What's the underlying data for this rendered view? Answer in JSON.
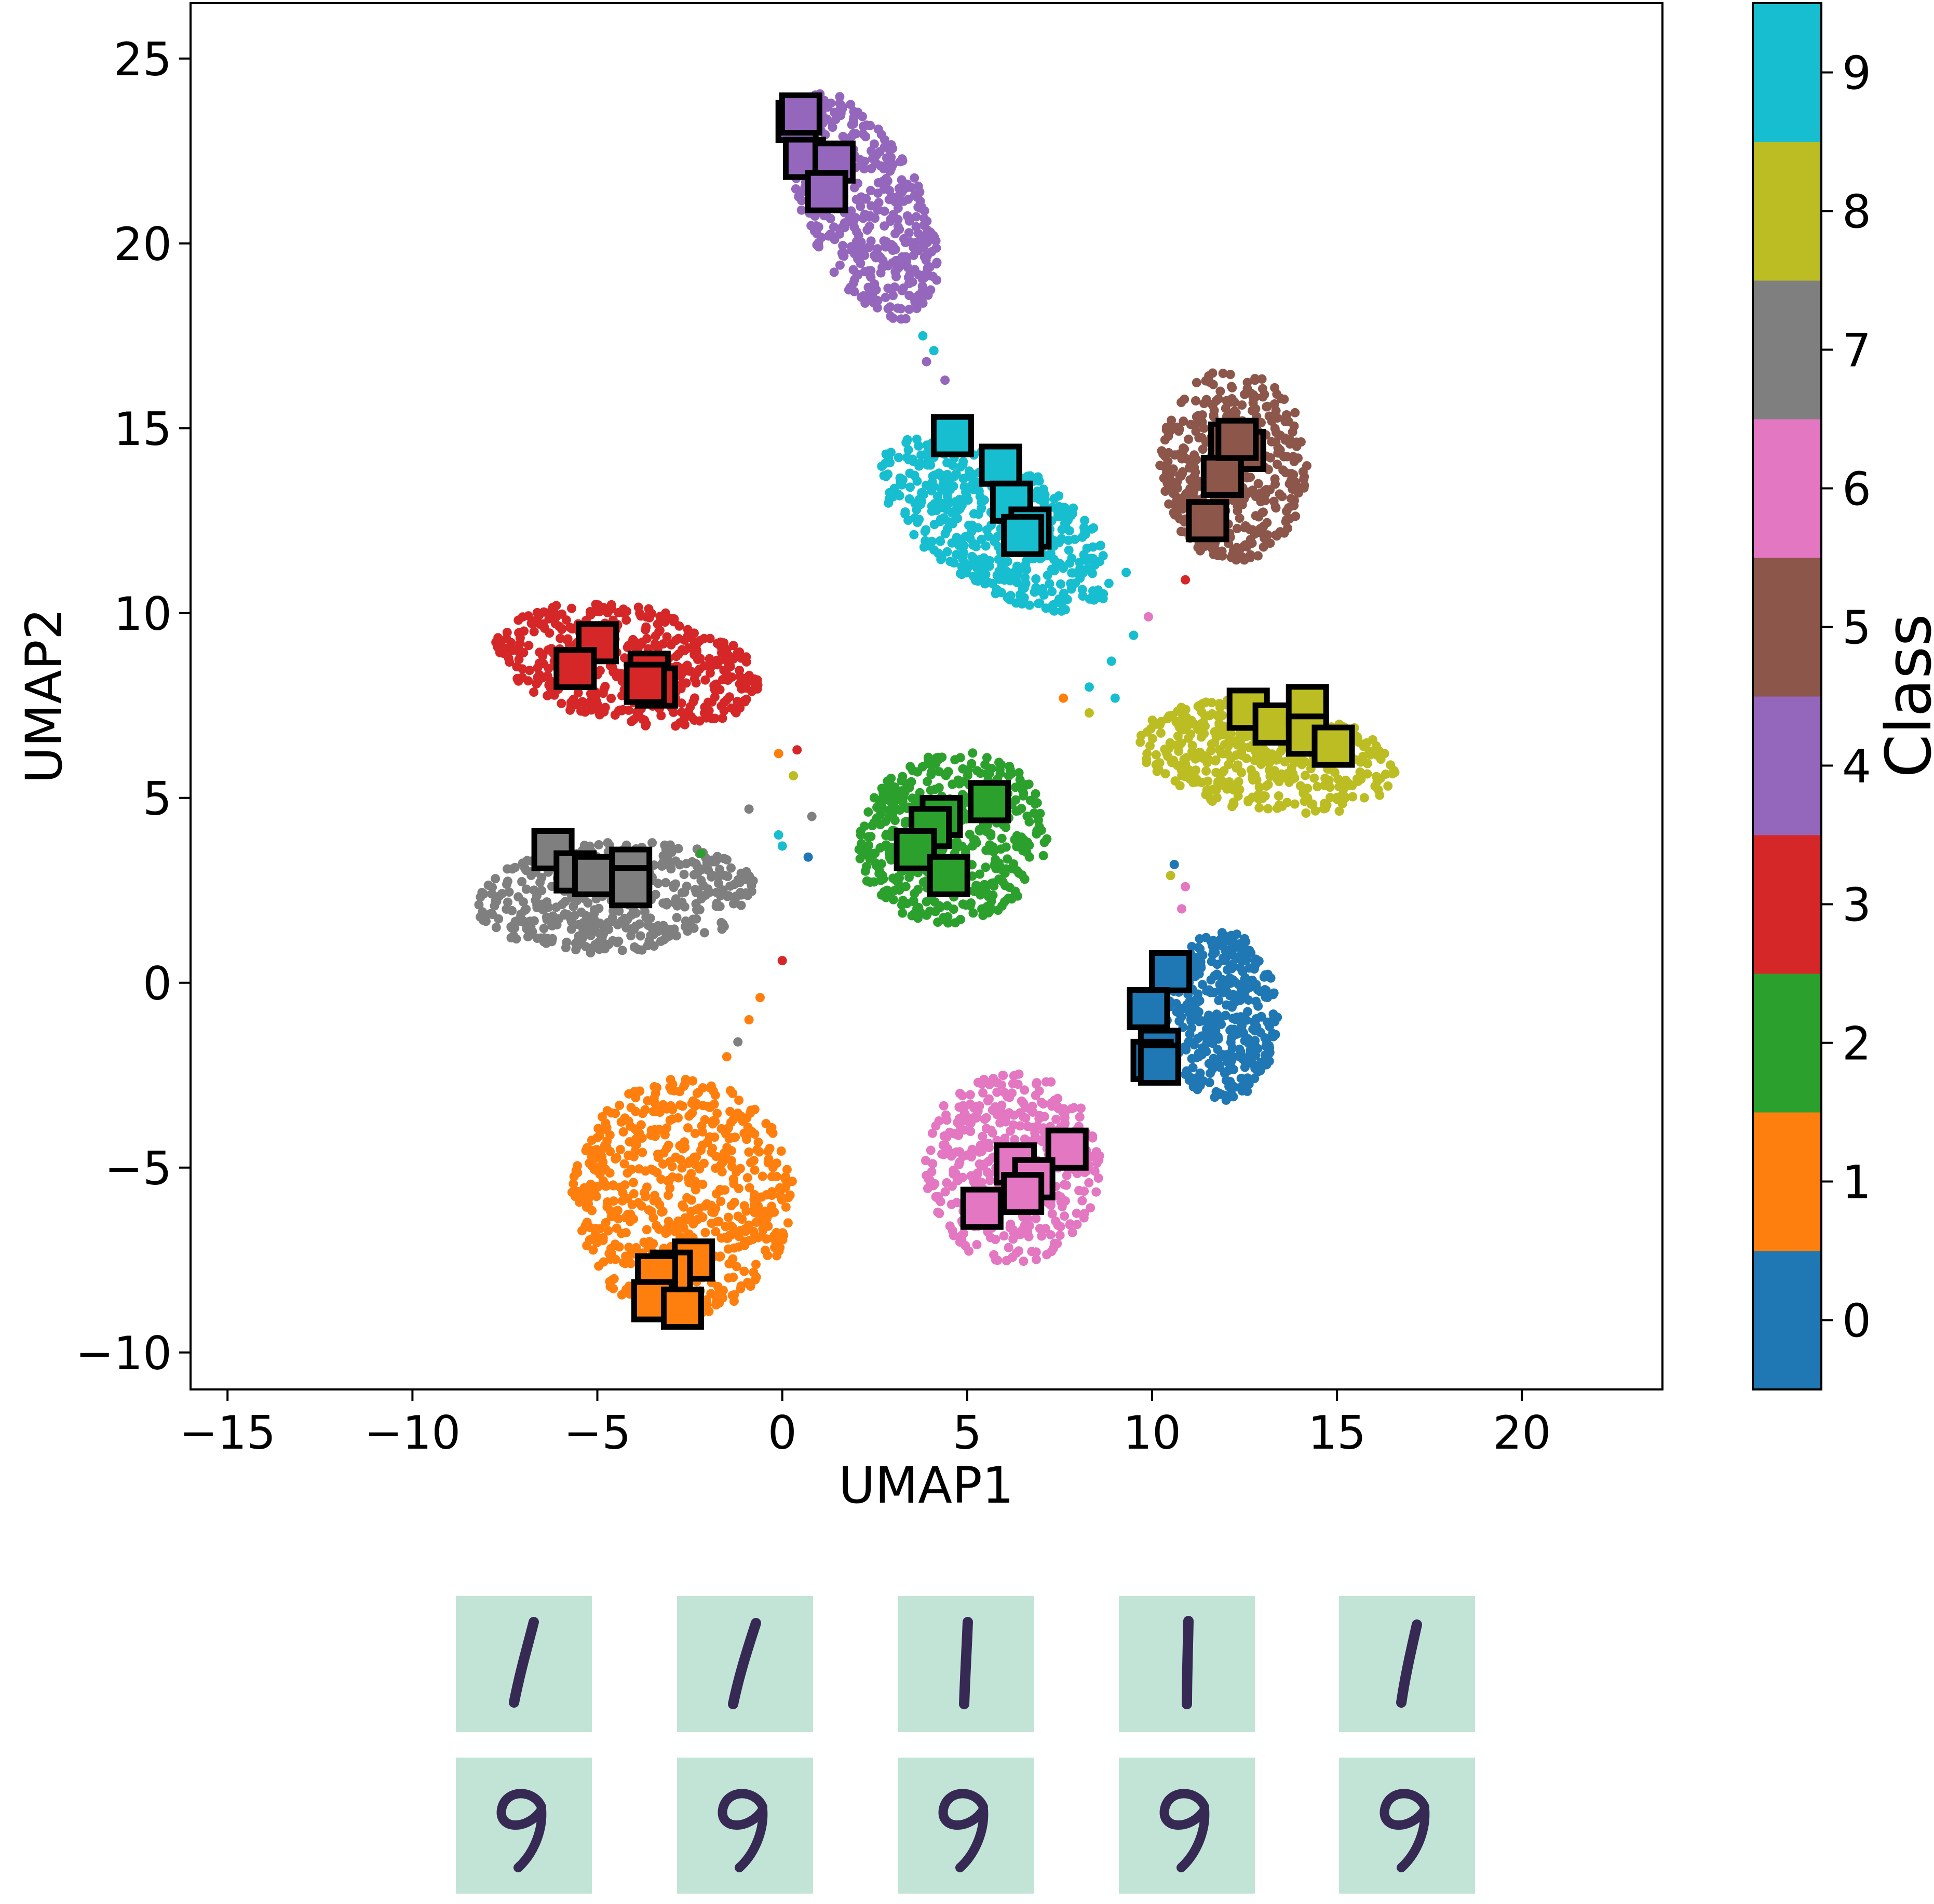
{
  "chart_data": {
    "type": "scatter",
    "xlabel": "UMAP1",
    "ylabel": "UMAP2",
    "xlim": [
      -16.0,
      23.8
    ],
    "ylim": [
      -11.0,
      26.5
    ],
    "xticks": [
      -15,
      -10,
      -5,
      0,
      5,
      10,
      15,
      20
    ],
    "xtick_labels": [
      "−15",
      "−10",
      "−5",
      "0",
      "5",
      "10",
      "15",
      "20"
    ],
    "yticks": [
      -10,
      -5,
      0,
      5,
      10,
      15,
      20,
      25
    ],
    "ytick_labels": [
      "−10",
      "−5",
      "0",
      "5",
      "10",
      "15",
      "20",
      "25"
    ],
    "grid": false,
    "colorbar": {
      "label": "Class",
      "ticks": [
        "0",
        "1",
        "2",
        "3",
        "4",
        "5",
        "6",
        "7",
        "8",
        "9"
      ],
      "colors": [
        "#1f77b4",
        "#ff7f0e",
        "#2ca02c",
        "#d62728",
        "#9467bd",
        "#8c564b",
        "#e377c2",
        "#7f7f7f",
        "#bcbd22",
        "#17becf"
      ]
    },
    "clusters": [
      {
        "class": 0,
        "center": [
          11.9,
          -0.9
        ],
        "spread": [
          1.5,
          2.3
        ],
        "rotation": 0,
        "count": 380
      },
      {
        "class": 1,
        "center": [
          -2.7,
          -5.8
        ],
        "spread": [
          3.0,
          3.2
        ],
        "rotation": 0,
        "count": 620
      },
      {
        "class": 2,
        "center": [
          4.6,
          3.9
        ],
        "spread": [
          2.6,
          2.3
        ],
        "rotation": 20,
        "count": 480
      },
      {
        "class": 3,
        "center": [
          -4.2,
          8.6
        ],
        "spread": [
          3.6,
          1.6
        ],
        "rotation": -10,
        "count": 460
      },
      {
        "class": 4,
        "center": [
          2.2,
          21.0
        ],
        "spread": [
          1.6,
          3.3
        ],
        "rotation": 25,
        "count": 440
      },
      {
        "class": 5,
        "center": [
          12.2,
          14.0
        ],
        "spread": [
          2.0,
          2.6
        ],
        "rotation": 0,
        "count": 420
      },
      {
        "class": 6,
        "center": [
          6.2,
          -5.0
        ],
        "spread": [
          2.4,
          2.6
        ],
        "rotation": 0,
        "count": 430
      },
      {
        "class": 7,
        "center": [
          -4.5,
          2.3
        ],
        "spread": [
          3.8,
          1.5
        ],
        "rotation": 3,
        "count": 460
      },
      {
        "class": 8,
        "center": [
          13.1,
          6.1
        ],
        "spread": [
          3.5,
          1.5
        ],
        "rotation": -8,
        "count": 460
      },
      {
        "class": 9,
        "center": [
          5.8,
          12.4
        ],
        "spread": [
          3.6,
          1.7
        ],
        "rotation": -32,
        "count": 500
      }
    ],
    "stragglers": [
      {
        "class": 9,
        "x": 3.8,
        "y": 17.5
      },
      {
        "class": 9,
        "x": 4.1,
        "y": 17.1
      },
      {
        "class": 4,
        "x": 3.9,
        "y": 16.8
      },
      {
        "class": 4,
        "x": 4.4,
        "y": 16.3
      },
      {
        "class": 9,
        "x": 9.3,
        "y": 11.1
      },
      {
        "class": 9,
        "x": 8.4,
        "y": 10.6
      },
      {
        "class": 6,
        "x": 9.9,
        "y": 9.9
      },
      {
        "class": 9,
        "x": 9.5,
        "y": 9.4
      },
      {
        "class": 9,
        "x": 8.9,
        "y": 8.7
      },
      {
        "class": 9,
        "x": 8.3,
        "y": 8.0
      },
      {
        "class": 9,
        "x": 9.0,
        "y": 7.7
      },
      {
        "class": 1,
        "x": 7.6,
        "y": 7.7
      },
      {
        "class": 8,
        "x": 8.3,
        "y": 7.3
      },
      {
        "class": 3,
        "x": 10.9,
        "y": 10.9
      },
      {
        "class": 3,
        "x": 0.4,
        "y": 6.3
      },
      {
        "class": 1,
        "x": -0.1,
        "y": 6.2
      },
      {
        "class": 8,
        "x": 0.3,
        "y": 5.6
      },
      {
        "class": 2,
        "x": 6.5,
        "y": 5.2
      },
      {
        "class": 7,
        "x": -0.9,
        "y": 4.7
      },
      {
        "class": 7,
        "x": 0.8,
        "y": 4.5
      },
      {
        "class": 9,
        "x": -0.1,
        "y": 4.0
      },
      {
        "class": 9,
        "x": 0.0,
        "y": 3.7
      },
      {
        "class": 0,
        "x": 0.7,
        "y": 3.4
      },
      {
        "class": 2,
        "x": -2.2,
        "y": 3.5
      },
      {
        "class": 0,
        "x": 10.6,
        "y": 3.2
      },
      {
        "class": 8,
        "x": 10.5,
        "y": 2.9
      },
      {
        "class": 6,
        "x": 10.9,
        "y": 2.6
      },
      {
        "class": 6,
        "x": 10.8,
        "y": 2.0
      },
      {
        "class": 3,
        "x": 0.0,
        "y": 0.6
      },
      {
        "class": 1,
        "x": -0.6,
        "y": -0.4
      },
      {
        "class": 1,
        "x": -0.9,
        "y": -1.0
      },
      {
        "class": 7,
        "x": -1.2,
        "y": -1.6
      },
      {
        "class": 1,
        "x": -1.5,
        "y": -2.0
      }
    ],
    "highlighted_samples": [
      {
        "class": 4,
        "points": [
          [
            0.4,
            23.3
          ],
          [
            0.6,
            22.3
          ],
          [
            1.4,
            22.2
          ],
          [
            1.2,
            21.4
          ],
          [
            0.5,
            23.5
          ]
        ]
      },
      {
        "class": 9,
        "points": [
          [
            4.6,
            14.8
          ],
          [
            5.9,
            14.0
          ],
          [
            6.2,
            13.0
          ],
          [
            6.7,
            12.3
          ],
          [
            6.5,
            12.1
          ]
        ]
      },
      {
        "class": 5,
        "points": [
          [
            12.1,
            14.6
          ],
          [
            12.5,
            14.4
          ],
          [
            11.9,
            13.7
          ],
          [
            11.5,
            12.5
          ],
          [
            12.3,
            14.7
          ]
        ]
      },
      {
        "class": 3,
        "points": [
          [
            -5.0,
            9.2
          ],
          [
            -5.6,
            8.5
          ],
          [
            -3.6,
            8.4
          ],
          [
            -3.4,
            8.0
          ],
          [
            -3.7,
            8.1
          ]
        ]
      },
      {
        "class": 8,
        "points": [
          [
            12.6,
            7.4
          ],
          [
            13.3,
            7.0
          ],
          [
            14.2,
            7.5
          ],
          [
            14.2,
            6.7
          ],
          [
            14.9,
            6.4
          ]
        ]
      },
      {
        "class": 2,
        "points": [
          [
            5.6,
            4.9
          ],
          [
            4.3,
            4.5
          ],
          [
            4.0,
            4.2
          ],
          [
            3.6,
            3.6
          ],
          [
            4.5,
            2.9
          ]
        ]
      },
      {
        "class": 7,
        "points": [
          [
            -6.2,
            3.6
          ],
          [
            -5.6,
            3.0
          ],
          [
            -5.1,
            2.9
          ],
          [
            -4.1,
            3.1
          ],
          [
            -4.1,
            2.6
          ]
        ]
      },
      {
        "class": 0,
        "points": [
          [
            10.5,
            0.3
          ],
          [
            9.9,
            -0.7
          ],
          [
            10.2,
            -1.8
          ],
          [
            10.0,
            -2.1
          ],
          [
            10.2,
            -2.2
          ]
        ]
      },
      {
        "class": 6,
        "points": [
          [
            7.7,
            -4.5
          ],
          [
            6.3,
            -4.9
          ],
          [
            6.8,
            -5.3
          ],
          [
            6.5,
            -5.7
          ],
          [
            5.4,
            -6.1
          ]
        ]
      },
      {
        "class": 1,
        "points": [
          [
            -2.4,
            -7.5
          ],
          [
            -3.0,
            -7.8
          ],
          [
            -3.4,
            -7.9
          ],
          [
            -3.5,
            -8.6
          ],
          [
            -2.7,
            -8.8
          ]
        ]
      }
    ]
  },
  "thumbnails": {
    "rows": [
      {
        "digit": "1",
        "count": 5
      },
      {
        "digit": "9",
        "count": 5
      }
    ]
  }
}
